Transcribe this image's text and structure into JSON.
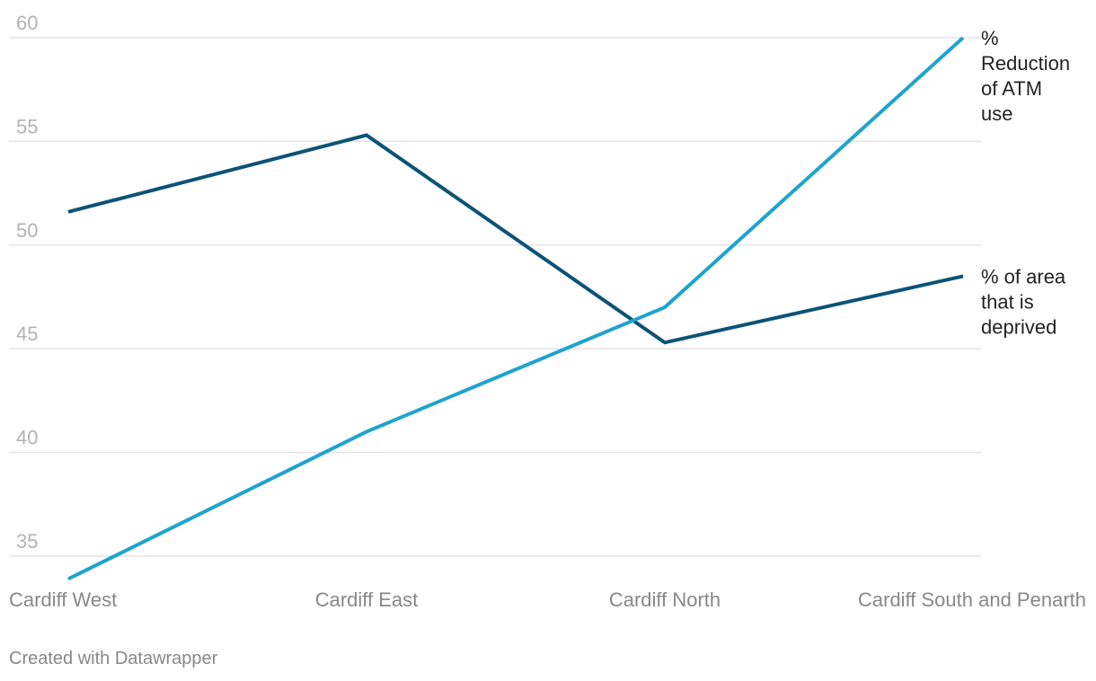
{
  "chart_data": {
    "type": "line",
    "categories": [
      "Cardiff West",
      "Cardiff East",
      "Cardiff North",
      "Cardiff South and Penarth"
    ],
    "series": [
      {
        "name": "% of area that is deprived",
        "label_lines": [
          "% of area",
          "that is",
          "deprived"
        ],
        "color": "#0b5377",
        "values": [
          51.6,
          55.3,
          45.3,
          48.5
        ]
      },
      {
        "name": "% Reduction of ATM use",
        "label_lines": [
          "%",
          "Reduction",
          "of ATM",
          "use"
        ],
        "color": "#1ea3cf",
        "values": [
          33.9,
          41.0,
          47.0,
          60.0
        ]
      }
    ],
    "yticks": [
      35,
      40,
      45,
      50,
      55,
      60
    ],
    "ylim": [
      33.9,
      60
    ],
    "grid": true,
    "legend": "direct labels at line ends (right)"
  },
  "footer": {
    "credit": "Created with Datawrapper"
  }
}
